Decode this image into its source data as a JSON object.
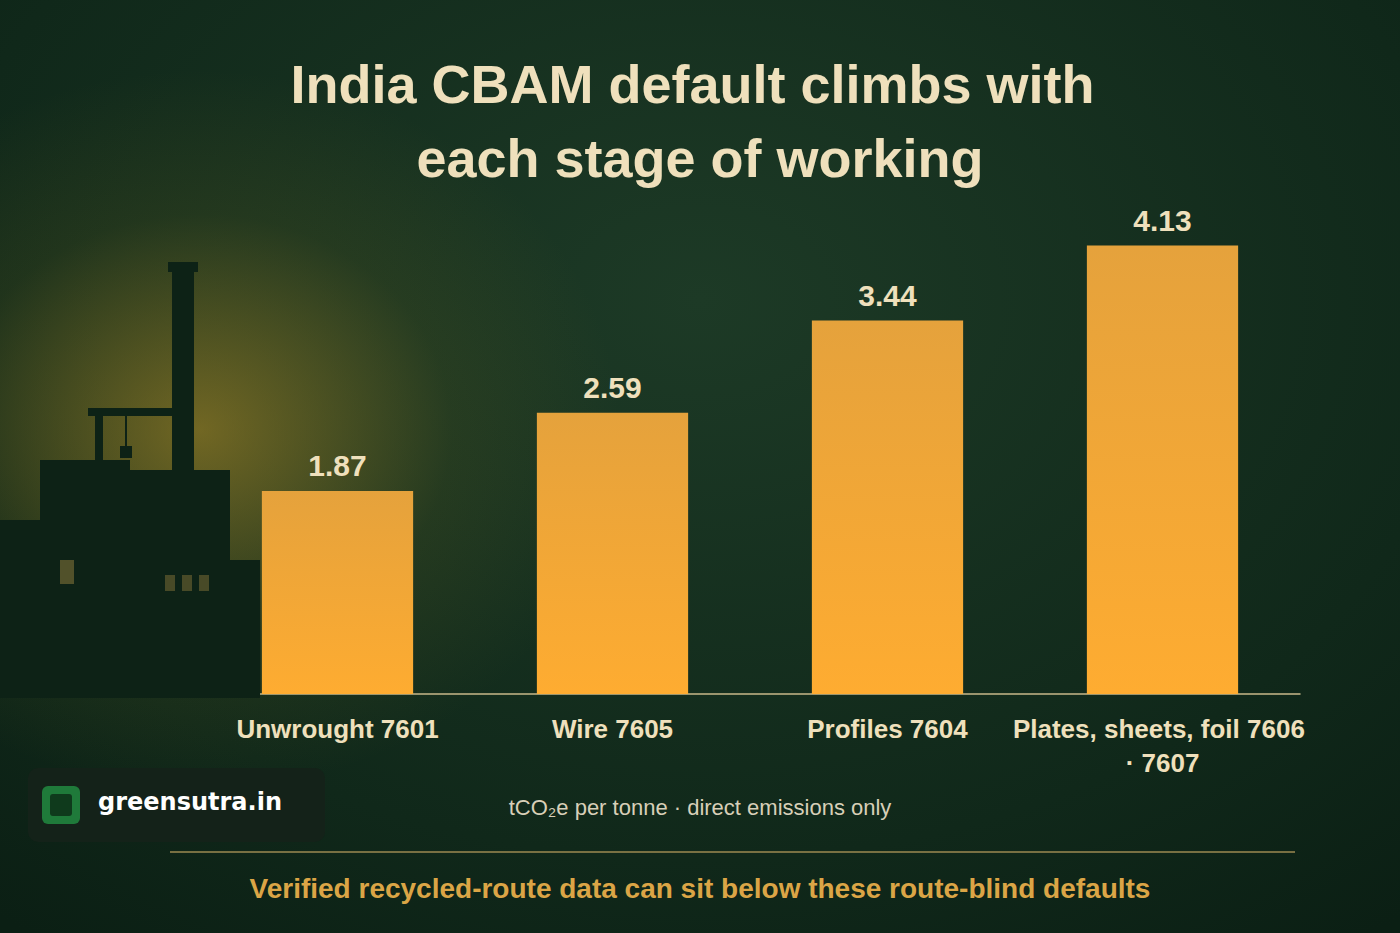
{
  "chart_data": {
    "type": "bar",
    "title": "India CBAM default climbs with each stage of working",
    "categories": [
      "Unwrought 7601",
      "Wire 7605",
      "Profiles 7604",
      "Plates, sheets, foil 7606 · 7607"
    ],
    "values": [
      1.87,
      2.59,
      3.44,
      4.13
    ],
    "color": "#e39a2c",
    "ylim": [
      0,
      5
    ],
    "data_labels": true,
    "tick_labels": "x",
    "grid": false,
    "xlabel": "tCO₂e per tonne · direct emissions only",
    "footnote": "Verified recycled-route data can sit below these route-blind defaults",
    "source": "greensutra.in"
  }
}
